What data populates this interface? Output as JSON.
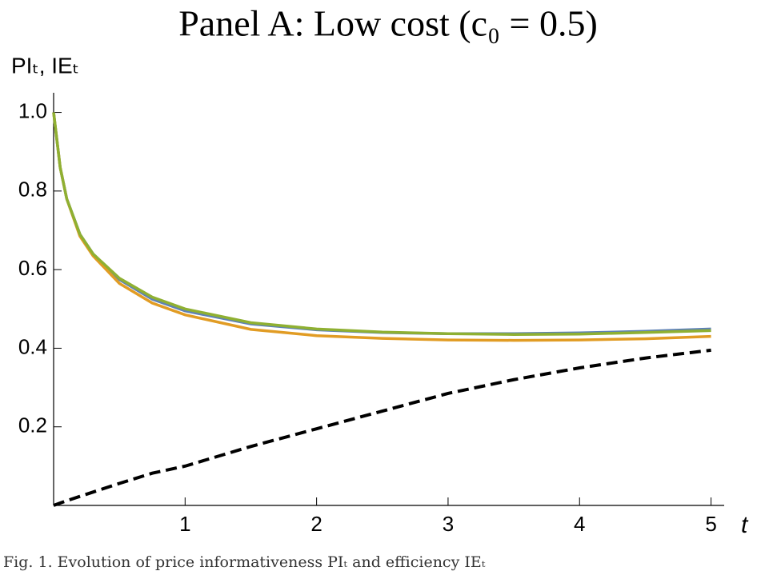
{
  "chart_data": {
    "type": "line",
    "title": "Panel A: Low cost (c₀ = 0.5)",
    "y_label": "PIₜ, IEₜ",
    "x_label": "t",
    "caption": "Fig. 1. Evolution of price informativeness PIₜ and efficiency IEₜ",
    "x": [
      0,
      0.05,
      0.1,
      0.2,
      0.3,
      0.5,
      0.75,
      1,
      1.5,
      2,
      2.5,
      3,
      3.5,
      4,
      4.5,
      5
    ],
    "series": [
      {
        "color": "#5e81b5",
        "values": [
          1,
          0.86,
          0.78,
          0.69,
          0.64,
          0.575,
          0.525,
          0.495,
          0.462,
          0.447,
          0.44,
          0.437,
          0.437,
          0.439,
          0.443,
          0.449
        ]
      },
      {
        "color": "#e19c24",
        "values": [
          1,
          0.86,
          0.78,
          0.685,
          0.635,
          0.565,
          0.515,
          0.485,
          0.448,
          0.432,
          0.425,
          0.421,
          0.42,
          0.421,
          0.424,
          0.43
        ]
      },
      {
        "color": "#8fb032",
        "values": [
          1,
          0.86,
          0.78,
          0.69,
          0.64,
          0.578,
          0.53,
          0.5,
          0.465,
          0.449,
          0.441,
          0.437,
          0.435,
          0.436,
          0.44,
          0.445
        ]
      },
      {
        "color": "#000000",
        "dashed": true,
        "values": [
          0,
          0.006,
          0.012,
          0.023,
          0.034,
          0.056,
          0.082,
          0.1,
          0.15,
          0.195,
          0.24,
          0.285,
          0.32,
          0.35,
          0.375,
          0.395
        ]
      }
    ],
    "xlim": [
      0,
      5.1
    ],
    "ylim": [
      0,
      1.05
    ],
    "xticks": [
      1,
      2,
      3,
      4,
      5
    ],
    "yticks": [
      0.2,
      0.4,
      0.6,
      0.8,
      {
        "value": 1,
        "label": "1.0"
      }
    ]
  }
}
